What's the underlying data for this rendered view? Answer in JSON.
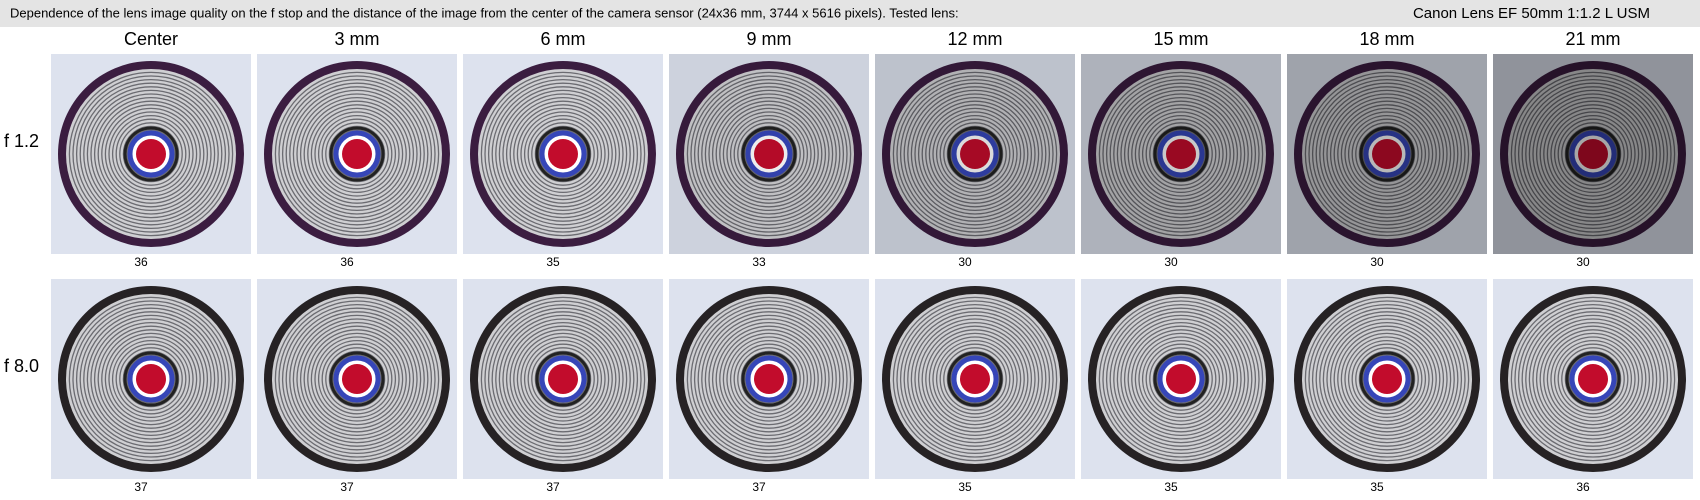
{
  "header": {
    "description": "Dependence of the lens image quality on the f stop and the distance of the image from the center of the camera sensor (24x36 mm, 3744 x 5616 pixels).  Tested lens:",
    "lens": "Canon Lens EF 50mm 1:1.2 L USM"
  },
  "columns": [
    "Center",
    "3 mm",
    "6 mm",
    "9 mm",
    "12 mm",
    "15 mm",
    "18 mm",
    "21 mm"
  ],
  "rows": [
    {
      "label": "f 1.2",
      "scores": [
        36,
        36,
        35,
        33,
        30,
        30,
        30,
        30
      ]
    },
    {
      "label": "f 8.0",
      "scores": [
        37,
        37,
        37,
        37,
        35,
        35,
        35,
        36
      ]
    }
  ]
}
